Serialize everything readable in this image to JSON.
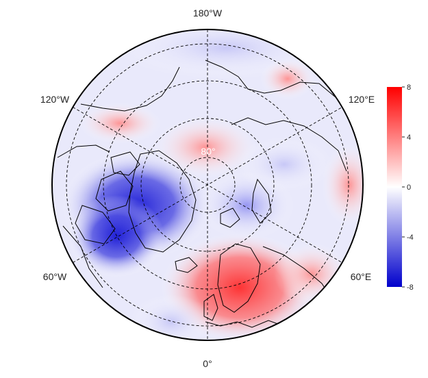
{
  "map": {
    "projection": "north-polar-stereographic",
    "longitude_labels": {
      "top": "180°W",
      "upper_left": "120°W",
      "upper_right": "120°E",
      "lower_left": "60°W",
      "lower_right": "60°E",
      "bottom": "0°"
    },
    "latitude_label": "80°",
    "grid": "dashed",
    "field_description": "anomaly field",
    "colors": {
      "negative": "#0000cc",
      "zero": "#ffffff",
      "positive": "#ff0000",
      "coastline": "#000000"
    }
  },
  "colorbar": {
    "min": -8,
    "max": 8,
    "ticks": [
      "8",
      "4",
      "0",
      "-4",
      "-8"
    ]
  }
}
